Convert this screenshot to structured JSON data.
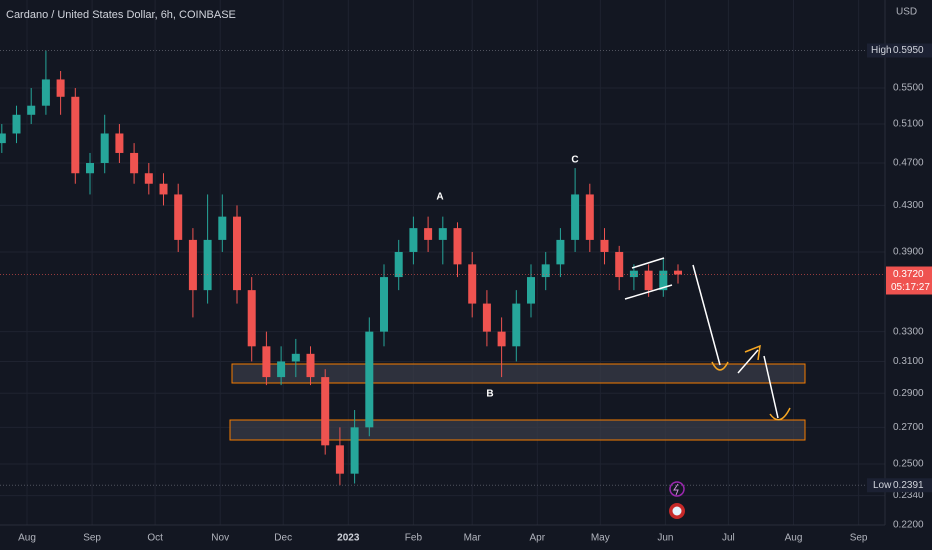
{
  "chart_data": {
    "type": "candlestick",
    "title": "Cardano / United States Dollar, 6h, COINBASE",
    "currency": "USD",
    "log": true,
    "grid": true,
    "up_color": "#26a69a",
    "down_color": "#ef5350",
    "x": [
      -12,
      -5,
      2,
      9,
      16,
      23,
      30,
      37,
      44,
      51,
      58,
      65,
      72,
      79,
      86,
      93,
      100,
      107,
      114,
      121,
      128,
      135,
      142,
      149,
      156,
      163,
      170,
      177,
      184,
      191,
      198,
      205,
      212,
      219,
      226,
      233,
      240,
      247,
      254,
      261,
      268,
      275,
      282,
      289,
      296,
      303,
      310
    ],
    "open": [
      0.49,
      0.5,
      0.52,
      0.53,
      0.56,
      0.54,
      0.46,
      0.47,
      0.5,
      0.48,
      0.46,
      0.45,
      0.44,
      0.4,
      0.36,
      0.4,
      0.42,
      0.36,
      0.32,
      0.3,
      0.31,
      0.315,
      0.3,
      0.26,
      0.245,
      0.27,
      0.33,
      0.37,
      0.39,
      0.41,
      0.4,
      0.41,
      0.38,
      0.35,
      0.33,
      0.32,
      0.35,
      0.37,
      0.38,
      0.4,
      0.44,
      0.4,
      0.39,
      0.37,
      0.375,
      0.36,
      0.375
    ],
    "high": [
      0.51,
      0.53,
      0.55,
      0.595,
      0.57,
      0.55,
      0.48,
      0.52,
      0.51,
      0.49,
      0.47,
      0.46,
      0.45,
      0.41,
      0.44,
      0.44,
      0.43,
      0.37,
      0.33,
      0.32,
      0.325,
      0.32,
      0.305,
      0.27,
      0.28,
      0.34,
      0.38,
      0.4,
      0.42,
      0.42,
      0.42,
      0.415,
      0.39,
      0.36,
      0.34,
      0.36,
      0.38,
      0.39,
      0.41,
      0.465,
      0.45,
      0.41,
      0.395,
      0.38,
      0.38,
      0.385,
      0.38
    ],
    "low": [
      0.48,
      0.49,
      0.51,
      0.52,
      0.52,
      0.45,
      0.44,
      0.46,
      0.47,
      0.45,
      0.44,
      0.43,
      0.39,
      0.34,
      0.35,
      0.39,
      0.35,
      0.31,
      0.295,
      0.295,
      0.3,
      0.295,
      0.255,
      0.2391,
      0.24,
      0.265,
      0.32,
      0.36,
      0.38,
      0.39,
      0.38,
      0.37,
      0.34,
      0.32,
      0.3,
      0.31,
      0.34,
      0.36,
      0.37,
      0.39,
      0.39,
      0.38,
      0.36,
      0.36,
      0.355,
      0.355,
      0.365
    ],
    "close": [
      0.5,
      0.52,
      0.53,
      0.56,
      0.54,
      0.46,
      0.47,
      0.5,
      0.48,
      0.46,
      0.45,
      0.44,
      0.4,
      0.36,
      0.4,
      0.42,
      0.36,
      0.32,
      0.3,
      0.31,
      0.315,
      0.3,
      0.26,
      0.245,
      0.27,
      0.33,
      0.37,
      0.39,
      0.41,
      0.4,
      0.41,
      0.38,
      0.35,
      0.33,
      0.32,
      0.35,
      0.37,
      0.38,
      0.4,
      0.44,
      0.4,
      0.39,
      0.37,
      0.375,
      0.36,
      0.375,
      0.372
    ],
    "xlim": [
      -12.86,
      408.57
    ],
    "xticks": [
      {
        "value": 0,
        "label": "Aug"
      },
      {
        "value": 31,
        "label": "Sep"
      },
      {
        "value": 61,
        "label": "Oct"
      },
      {
        "value": 92,
        "label": "Nov"
      },
      {
        "value": 122,
        "label": "Dec"
      },
      {
        "value": 153,
        "label": "2023"
      },
      {
        "value": 184,
        "label": "Feb"
      },
      {
        "value": 212,
        "label": "Mar"
      },
      {
        "value": 243,
        "label": "Apr"
      },
      {
        "value": 273,
        "label": "May"
      },
      {
        "value": 304,
        "label": "Jun"
      },
      {
        "value": 334,
        "label": "Jul"
      },
      {
        "value": 365,
        "label": "Aug"
      },
      {
        "value": 396,
        "label": "Sep"
      }
    ],
    "ylim": [
      0.22,
      0.6615
    ],
    "yticks": [
      {
        "value": 0.55,
        "label": "0.5500"
      },
      {
        "value": 0.51,
        "label": "0.5100"
      },
      {
        "value": 0.47,
        "label": "0.4700"
      },
      {
        "value": 0.43,
        "label": "0.4300"
      },
      {
        "value": 0.39,
        "label": "0.3900"
      },
      {
        "value": 0.33,
        "label": "0.3300"
      },
      {
        "value": 0.31,
        "label": "0.3100"
      },
      {
        "value": 0.29,
        "label": "0.2900"
      },
      {
        "value": 0.27,
        "label": "0.2700"
      },
      {
        "value": 0.25,
        "label": "0.2500"
      },
      {
        "value": 0.234,
        "label": "0.2340"
      },
      {
        "value": 0.22,
        "label": "0.2200"
      }
    ],
    "high_label": "High",
    "high_value": {
      "value": 0.595,
      "label": "0.5950"
    },
    "low_label": "Low",
    "low_value": 0.2391,
    "last_price": {
      "value": 0.372,
      "label": "0.3720"
    },
    "countdown": "05:17:27",
    "annotations": [
      "A",
      "B",
      "C"
    ]
  }
}
